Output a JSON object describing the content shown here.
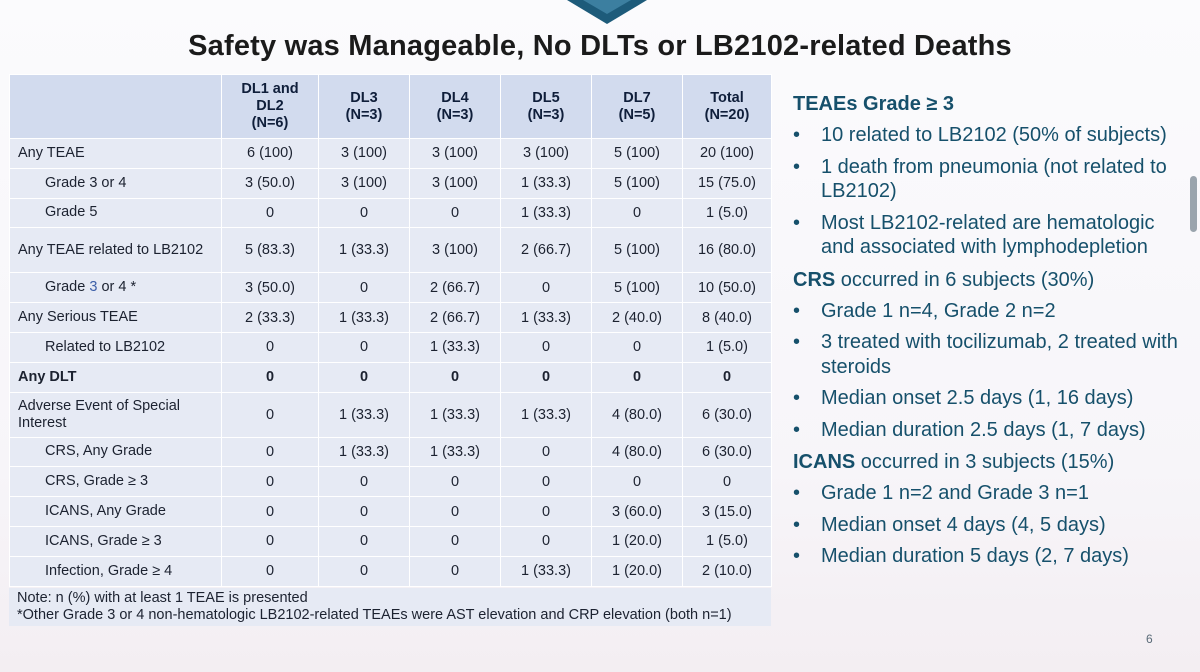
{
  "title": "Safety was Manageable, No DLTs or LB2102-related Deaths",
  "table": {
    "headers": [
      "",
      "DL1 and\nDL2\n(N=6)",
      "DL3\n(N=3)",
      "DL4\n(N=3)",
      "DL5\n(N=3)",
      "DL7\n(N=5)",
      "Total\n(N=20)"
    ],
    "rows": [
      {
        "label": "Any TEAE",
        "cells": [
          "6 (100)",
          "3 (100)",
          "3 (100)",
          "3 (100)",
          "5 (100)",
          "20 (100)"
        ]
      },
      {
        "label": "Grade 3 or 4",
        "cells": [
          "3 (50.0)",
          "3 (100)",
          "3 (100)",
          "1 (33.3)",
          "5 (100)",
          "15 (75.0)"
        ]
      },
      {
        "label": "Grade 5",
        "cells": [
          "0",
          "0",
          "0",
          "1 (33.3)",
          "0",
          "1 (5.0)"
        ]
      },
      {
        "label": "Any TEAE related to LB2102",
        "cells": [
          "5 (83.3)",
          "1 (33.3)",
          "3 (100)",
          "2 (66.7)",
          "5 (100)",
          "16 (80.0)"
        ]
      },
      {
        "label_pre": "Grade ",
        "label_accent": "3",
        "label_post": " or 4 *",
        "cells": [
          "3 (50.0)",
          "0",
          "2 (66.7)",
          "0",
          "5 (100)",
          "10 (50.0)"
        ]
      },
      {
        "label": "Any Serious TEAE",
        "cells": [
          "2 (33.3)",
          "1 (33.3)",
          "2 (66.7)",
          "1 (33.3)",
          "2 (40.0)",
          "8 (40.0)"
        ]
      },
      {
        "label": "Related to LB2102",
        "cells": [
          "0",
          "0",
          "1 (33.3)",
          "0",
          "0",
          "1 (5.0)"
        ]
      },
      {
        "label": "Any DLT",
        "cells": [
          "0",
          "0",
          "0",
          "0",
          "0",
          "0"
        ]
      },
      {
        "label": "Adverse Event of Special Interest",
        "cells": [
          "0",
          "1 (33.3)",
          "1 (33.3)",
          "1 (33.3)",
          "4 (80.0)",
          "6 (30.0)"
        ]
      },
      {
        "label": "CRS, Any Grade",
        "cells": [
          "0",
          "1 (33.3)",
          "1 (33.3)",
          "0",
          "4 (80.0)",
          "6 (30.0)"
        ]
      },
      {
        "label": "CRS, Grade ≥ 3",
        "cells": [
          "0",
          "0",
          "0",
          "0",
          "0",
          "0"
        ]
      },
      {
        "label": "ICANS, Any Grade",
        "cells": [
          "0",
          "0",
          "0",
          "0",
          "3 (60.0)",
          "3 (15.0)"
        ]
      },
      {
        "label": "ICANS, Grade ≥ 3",
        "cells": [
          "0",
          "0",
          "0",
          "0",
          "1 (20.0)",
          "1 (5.0)"
        ]
      },
      {
        "label": "Infection, Grade ≥ 4",
        "cells": [
          "0",
          "0",
          "0",
          "1 (33.3)",
          "1 (20.0)",
          "2 (10.0)"
        ]
      }
    ]
  },
  "notes": {
    "line1": "Note: n (%) with at least 1 TEAE is presented",
    "line2": "*Other Grade 3 or 4 non-hematologic LB2102-related TEAEs were AST elevation and CRP elevation (both n=1)"
  },
  "summary": {
    "teaes_head": "TEAEs Grade ≥ 3",
    "teaes": [
      "10 related to LB2102 (50% of subjects)",
      "1 death from pneumonia (not related to LB2102)",
      "Most LB2102-related are hematologic and associated with lymphodepletion"
    ],
    "crs_bold": "CRS",
    "crs_rest": " occurred in 6 subjects (30%)",
    "crs": [
      "Grade 1 n=4, Grade 2 n=2",
      "3 treated with tocilizumab, 2 treated with steroids",
      "Median onset 2.5 days (1, 16 days)",
      "Median duration 2.5 days (1, 7 days)"
    ],
    "icans_bold": "ICANS",
    "icans_rest": " occurred in 3 subjects (15%)",
    "icans": [
      "Grade 1 n=2 and Grade 3 n=1",
      "Median onset 4 days (4, 5 days)",
      "Median duration 5 days (2, 7 days)"
    ],
    "bullet": "•"
  },
  "page_number": "6"
}
